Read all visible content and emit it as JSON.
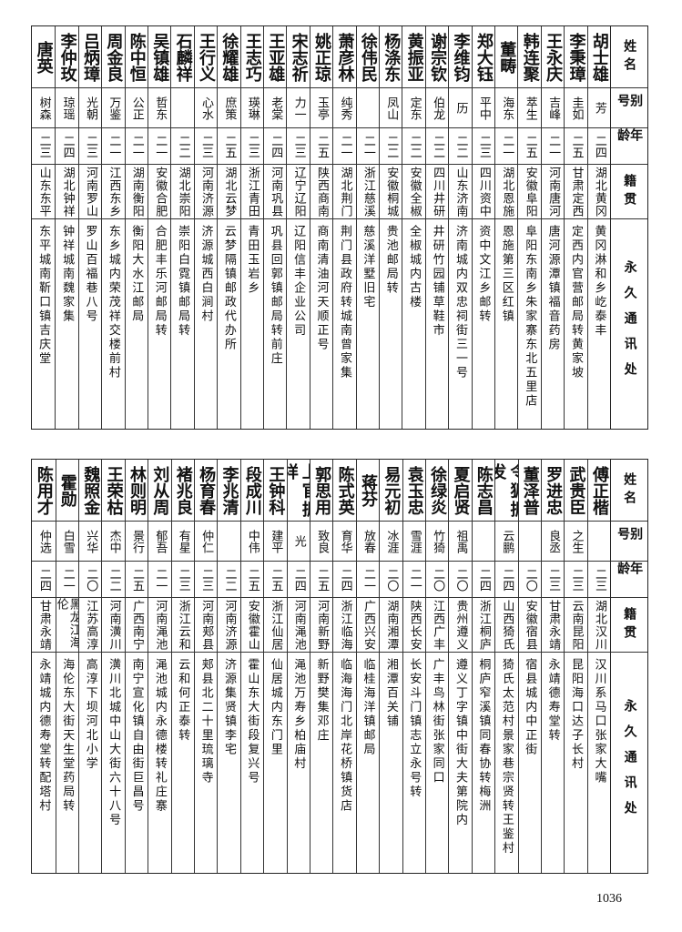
{
  "header": {
    "name": "姓名",
    "alias": "别号",
    "age": "年龄",
    "origin": "籍贯",
    "address": "永久通讯处"
  },
  "top_table": [
    {
      "name": "胡士雄",
      "alias": "芳",
      "age": "二四",
      "origin": "湖北黄冈",
      "address": "黄冈淋和乡屹泰丰"
    },
    {
      "name": "李秉璋",
      "alias": "圭如",
      "age": "二五",
      "origin": "甘肃定西",
      "address": "定西内官营邮局转黄家坡"
    },
    {
      "name": "王永庆",
      "alias": "吉峰",
      "age": "二一",
      "origin": "河南唐河",
      "address": "唐河源潭镇福音药房"
    },
    {
      "name": "韩连聚",
      "alias": "萃生",
      "age": "二五",
      "origin": "安徽阜阳",
      "address": "阜阳东南乡朱家寨东北五里店"
    },
    {
      "name": "董畴",
      "alias": "海东",
      "age": "二一",
      "origin": "湖北恩施",
      "address": "恩施第三区红镇"
    },
    {
      "name": "郑大钰",
      "alias": "平中",
      "age": "二三",
      "origin": "四川资中",
      "address": "资中文江乡邮转"
    },
    {
      "name": "李维钧",
      "alias": "历",
      "age": "二二",
      "origin": "山东济南",
      "address": "济南城内双忠祠街三一号"
    },
    {
      "name": "谢宗钦",
      "alias": "伯龙",
      "age": "二二",
      "origin": "四川井研",
      "address": "井研竹园铺草鞋市"
    },
    {
      "name": "黄振亚",
      "alias": "定东",
      "age": "二二",
      "origin": "安徽全椒",
      "address": "全椒城内古楼"
    },
    {
      "name": "杨涤东",
      "alias": "凤山",
      "age": "二二",
      "origin": "安徽桐城",
      "address": "贵池邮局转"
    },
    {
      "name": "徐伟民",
      "alias": "",
      "age": "二一",
      "origin": "浙江慈溪",
      "address": "慈溪洋墅旧宅"
    },
    {
      "name": "萧彦林",
      "alias": "纯秀",
      "age": "二一",
      "origin": "湖北荆门",
      "address": "荆门县政府转城南曾家集"
    },
    {
      "name": "姚正琼",
      "alias": "玉亭",
      "age": "二五",
      "origin": "陕西商南",
      "address": "商南清油河天顺正号"
    },
    {
      "name": "宋志祈",
      "alias": "力一",
      "age": "二三",
      "origin": "辽宁辽阳",
      "address": "辽阳信丰企业公司"
    },
    {
      "name": "王亚雄",
      "alias": "老棠",
      "age": "二四",
      "origin": "河南巩县",
      "address": "巩县回郭镇邮局转前庄"
    },
    {
      "name": "王志巧",
      "alias": "瑛琳",
      "age": "二三",
      "origin": "浙江青田",
      "address": "青田玉岩乡"
    },
    {
      "name": "徐耀雄",
      "alias": "庶策",
      "age": "二五",
      "origin": "湖北云梦",
      "address": "云梦隔镇邮政代办所"
    },
    {
      "name": "王行义",
      "alias": "心水",
      "age": "二三",
      "origin": "河南济源",
      "address": "济源城西白涧村"
    },
    {
      "name": "石麟祥",
      "alias": "",
      "age": "二二",
      "origin": "湖北崇阳",
      "address": "崇阳白霓镇邮局转"
    },
    {
      "name": "吴镇雄",
      "alias": "哲东",
      "age": "二一",
      "origin": "安徽合肥",
      "address": "合肥丰乐河邮局转"
    },
    {
      "name": "陈中恒",
      "alias": "公正",
      "age": "二一",
      "origin": "湖南衡阳",
      "address": "衡阳大水江邮局"
    },
    {
      "name": "周金良",
      "alias": "万鉴",
      "age": "二一",
      "origin": "江西东乡",
      "address": "东乡城内荣茂祥交楼前村"
    },
    {
      "name": "吕炳璋",
      "alias": "光朝",
      "age": "二三",
      "origin": "河南罗山",
      "address": "罗山百福巷八号"
    },
    {
      "name": "李仲玫",
      "alias": "琼瑶",
      "age": "二四",
      "origin": "湖北钟祥",
      "address": "钟祥城南魏家集"
    },
    {
      "name": "唐英",
      "alias": "树森",
      "age": "二三",
      "origin": "山东东平",
      "address": "东平城南靳口镇吉庆堂"
    }
  ],
  "bottom_table": [
    {
      "name": "傅正楷",
      "alias": "",
      "age": "二三",
      "origin": "湖北汉川",
      "address": "汉川系马口张家大嘴"
    },
    {
      "name": "武贵臣",
      "alias": "之生",
      "age": "二三",
      "origin": "云南昆阳",
      "address": "昆阳海口达子长村"
    },
    {
      "name": "罗进忠",
      "alias": "良丞",
      "age": "二三",
      "origin": "甘肃永靖",
      "address": "永靖德寿堂转"
    },
    {
      "name": "董泽普",
      "alias": "",
      "age": "二〇",
      "origin": "安徽宿县",
      "address": "宿县城内中正街"
    },
    {
      "name": "令狐振发",
      "alias": "云鹏",
      "age": "二四",
      "origin": "山西猗氏",
      "address": "猗氏太范村景家巷宗贤转王鉴村"
    },
    {
      "name": "陈志昌",
      "alias": "",
      "age": "二四",
      "origin": "浙江桐庐",
      "address": "桐庐窄溪镇同春协转梅洲"
    },
    {
      "name": "夏启贤",
      "alias": "祖禹",
      "age": "二〇",
      "origin": "贵州遵义",
      "address": "遵义丁字镇中街大夫第院内"
    },
    {
      "name": "徐绿炎",
      "alias": "竹猗",
      "age": "二〇",
      "origin": "江西广丰",
      "address": "广丰鸟林街张家同口"
    },
    {
      "name": "袁玉忠",
      "alias": "雪涯",
      "age": "二一",
      "origin": "陕西长安",
      "address": "长安斗门镇志立永号转"
    },
    {
      "name": "易元初",
      "alias": "冰涯",
      "age": "二〇",
      "origin": "湖南湘潭",
      "address": "湘潭百关铺"
    },
    {
      "name": "蒋芬",
      "alias": "放春",
      "age": "二一",
      "origin": "广西兴安",
      "address": "临桂海洋镇邮局"
    },
    {
      "name": "陈式英",
      "alias": "育华",
      "age": "二四",
      "origin": "浙江临海",
      "address": "临海海门北岸花桥镇货店"
    },
    {
      "name": "郭思用",
      "alias": "致良",
      "age": "二五",
      "origin": "河南新野",
      "address": "新野樊集邓庄"
    },
    {
      "name": "上官振祥",
      "alias": "光",
      "age": "二四",
      "origin": "河南渑池",
      "address": "渑池万寿乡柏庙村"
    },
    {
      "name": "王钟科",
      "alias": "建平",
      "age": "二五",
      "origin": "浙江仙居",
      "address": "仙居城内东门里"
    },
    {
      "name": "段成川",
      "alias": "中伟",
      "age": "二五",
      "origin": "安徽霍山",
      "address": "霍山东大街段复兴号"
    },
    {
      "name": "李兆清",
      "alias": "",
      "age": "二二",
      "origin": "河南济源",
      "address": "济源集贤镇李宅"
    },
    {
      "name": "杨育春",
      "alias": "仲仁",
      "age": "二三",
      "origin": "河南郏县",
      "address": "郏县北二十里琉璃寺"
    },
    {
      "name": "褚兆良",
      "alias": "有星",
      "age": "二三",
      "origin": "浙江云和",
      "address": "云和何正泰转"
    },
    {
      "name": "刘从周",
      "alias": "郁吾",
      "age": "二一",
      "origin": "河南渑池",
      "address": "渑池城内永德楼转礼庄寨"
    },
    {
      "name": "林则明",
      "alias": "景行",
      "age": "二五",
      "origin": "广西南宁",
      "address": "南宁宣化镇自由街巨昌号"
    },
    {
      "name": "王荣枯",
      "alias": "杰中",
      "age": "二二",
      "origin": "河南潢川",
      "address": "潢川北城中山大街六十八号"
    },
    {
      "name": "魏照金",
      "alias": "兴华",
      "age": "二〇",
      "origin": "江苏高淳",
      "address": "高淳下坝河北小学"
    },
    {
      "name": "霍勋",
      "alias": "白雪",
      "age": "二一",
      "origin": "黑龙江海伦",
      "address": "海伦东大街天生堂药局转"
    },
    {
      "name": "陈用才",
      "alias": "仲选",
      "age": "二四",
      "origin": "甘肃永靖",
      "address": "永靖城内德寿堂转配塔村"
    }
  ],
  "page_number": "1036"
}
